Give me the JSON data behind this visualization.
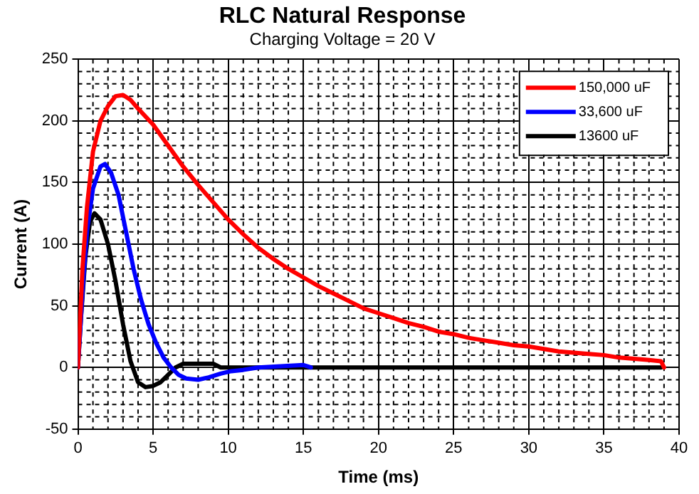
{
  "chart_data": {
    "type": "line",
    "title": "RLC Natural Response",
    "subtitle": "Charging Voltage = 20 V",
    "xlabel": "Time (ms)",
    "ylabel": "Current (A)",
    "xlim": [
      0,
      40
    ],
    "xticks": [
      0,
      5,
      10,
      15,
      20,
      25,
      30,
      35,
      40
    ],
    "ylim": [
      -50,
      250
    ],
    "yticks": [
      -50,
      0,
      50,
      100,
      150,
      200,
      250
    ],
    "grid": true,
    "legend": "top right",
    "marker": "none",
    "line_style": "solid",
    "series": [
      {
        "name": "150,000 uF",
        "color": "#ff0000",
        "x": [
          0,
          0.3,
          0.6,
          1,
          1.5,
          2,
          2.5,
          3,
          3.5,
          4,
          5,
          6,
          7,
          8,
          9,
          10,
          11,
          12,
          13,
          14,
          15,
          16,
          17,
          18,
          19,
          20,
          21,
          22,
          23,
          24,
          25,
          26,
          27,
          28,
          29,
          30,
          31,
          32,
          33,
          34,
          35,
          36,
          37,
          38,
          38.8,
          39
        ],
        "values": [
          0,
          80,
          130,
          175,
          200,
          212,
          220,
          221,
          217,
          210,
          197,
          180,
          163,
          148,
          134,
          120,
          108,
          97,
          88,
          80,
          73,
          66,
          60,
          54,
          48,
          44,
          40,
          36,
          33,
          29,
          27,
          24,
          22,
          20,
          18,
          17,
          15,
          13,
          12,
          11,
          10,
          8,
          7,
          6,
          5,
          0
        ]
      },
      {
        "name": "33,600 uF",
        "color": "#0000ff",
        "x": [
          0,
          0.3,
          0.6,
          1,
          1.5,
          1.8,
          2.2,
          2.7,
          3.2,
          3.7,
          4.2,
          4.7,
          5.2,
          5.7,
          6.2,
          6.7,
          7.2,
          8,
          8.7,
          9.5,
          10.2,
          11,
          12,
          13.5,
          15,
          15.5
        ],
        "values": [
          0,
          60,
          110,
          145,
          163,
          165,
          158,
          140,
          110,
          80,
          55,
          35,
          20,
          8,
          0,
          -6,
          -9,
          -10,
          -8,
          -5,
          -3,
          -2,
          0,
          1,
          2,
          0
        ]
      },
      {
        "name": "13600 uF",
        "color": "#000000",
        "x": [
          0,
          0.2,
          0.5,
          0.8,
          1.1,
          1.5,
          2,
          2.5,
          3,
          3.5,
          4,
          4.5,
          5,
          5.5,
          6,
          6.5,
          7,
          8,
          9,
          9.5,
          10,
          20,
          30,
          38.8
        ],
        "values": [
          0,
          40,
          90,
          118,
          125,
          120,
          100,
          70,
          35,
          5,
          -12,
          -16,
          -15,
          -12,
          -6,
          0,
          3,
          3,
          3,
          0,
          0,
          0,
          0,
          0
        ]
      }
    ]
  }
}
